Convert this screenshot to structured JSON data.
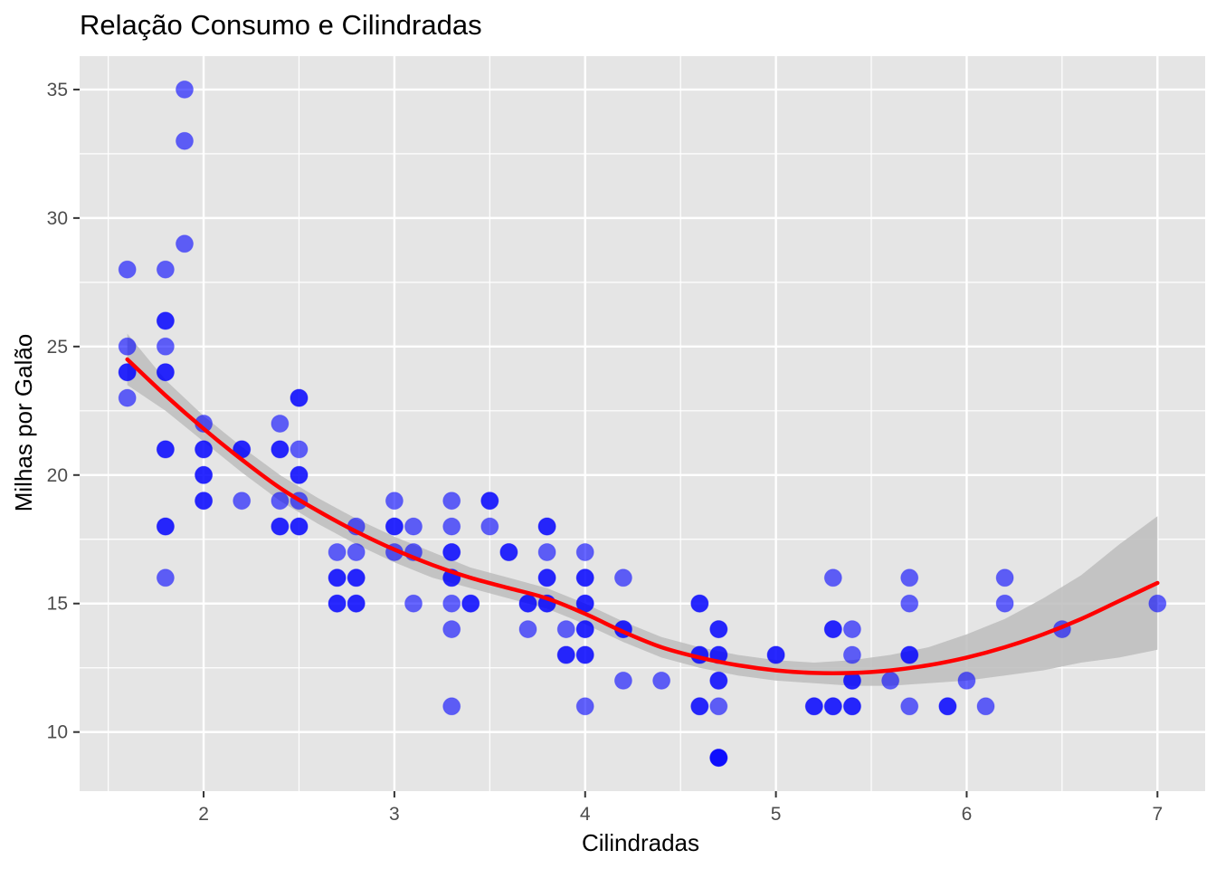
{
  "chart_data": {
    "type": "scatter",
    "title": "Relação Consumo e Cilindradas",
    "xlabel": "Cilindradas",
    "ylabel": "Milhas por Galão",
    "xlim": [
      1.35,
      7.25
    ],
    "ylim": [
      7.7,
      36.3
    ],
    "x_ticks": [
      2,
      3,
      4,
      5,
      6,
      7
    ],
    "y_ticks": [
      10,
      15,
      20,
      25,
      30,
      35
    ],
    "grid": true,
    "legend": "none",
    "colors": {
      "panel": "#e5e5e5",
      "grid": "#ffffff",
      "points": "#0000ff",
      "smooth_line": "#ff0000",
      "confidence_band": "#bdbdbd"
    },
    "points": [
      [
        1.6,
        28
      ],
      [
        1.6,
        25
      ],
      [
        1.6,
        24
      ],
      [
        1.6,
        24
      ],
      [
        1.6,
        23
      ],
      [
        1.8,
        28
      ],
      [
        1.8,
        26
      ],
      [
        1.8,
        26
      ],
      [
        1.8,
        25
      ],
      [
        1.8,
        24
      ],
      [
        1.8,
        24
      ],
      [
        1.8,
        21
      ],
      [
        1.8,
        21
      ],
      [
        1.8,
        18
      ],
      [
        1.8,
        18
      ],
      [
        1.8,
        16
      ],
      [
        1.9,
        35
      ],
      [
        1.9,
        33
      ],
      [
        1.9,
        29
      ],
      [
        2.0,
        22
      ],
      [
        2.0,
        21
      ],
      [
        2.0,
        21
      ],
      [
        2.0,
        20
      ],
      [
        2.0,
        20
      ],
      [
        2.0,
        19
      ],
      [
        2.0,
        19
      ],
      [
        2.2,
        21
      ],
      [
        2.2,
        21
      ],
      [
        2.2,
        19
      ],
      [
        2.4,
        22
      ],
      [
        2.4,
        21
      ],
      [
        2.4,
        21
      ],
      [
        2.4,
        19
      ],
      [
        2.4,
        18
      ],
      [
        2.4,
        18
      ],
      [
        2.5,
        23
      ],
      [
        2.5,
        23
      ],
      [
        2.5,
        21
      ],
      [
        2.5,
        20
      ],
      [
        2.5,
        20
      ],
      [
        2.5,
        19
      ],
      [
        2.5,
        18
      ],
      [
        2.5,
        18
      ],
      [
        2.7,
        17
      ],
      [
        2.7,
        16
      ],
      [
        2.7,
        16
      ],
      [
        2.7,
        15
      ],
      [
        2.7,
        15
      ],
      [
        2.8,
        18
      ],
      [
        2.8,
        17
      ],
      [
        2.8,
        16
      ],
      [
        2.8,
        16
      ],
      [
        2.8,
        15
      ],
      [
        2.8,
        15
      ],
      [
        3.0,
        19
      ],
      [
        3.0,
        18
      ],
      [
        3.0,
        18
      ],
      [
        3.0,
        17
      ],
      [
        3.1,
        18
      ],
      [
        3.1,
        17
      ],
      [
        3.1,
        15
      ],
      [
        3.3,
        19
      ],
      [
        3.3,
        18
      ],
      [
        3.3,
        17
      ],
      [
        3.3,
        17
      ],
      [
        3.3,
        16
      ],
      [
        3.3,
        16
      ],
      [
        3.3,
        15
      ],
      [
        3.3,
        14
      ],
      [
        3.3,
        11
      ],
      [
        3.4,
        15
      ],
      [
        3.4,
        15
      ],
      [
        3.5,
        19
      ],
      [
        3.5,
        19
      ],
      [
        3.5,
        18
      ],
      [
        3.6,
        17
      ],
      [
        3.6,
        17
      ],
      [
        3.7,
        15
      ],
      [
        3.7,
        15
      ],
      [
        3.7,
        14
      ],
      [
        3.8,
        18
      ],
      [
        3.8,
        18
      ],
      [
        3.8,
        17
      ],
      [
        3.8,
        16
      ],
      [
        3.8,
        16
      ],
      [
        3.8,
        15
      ],
      [
        3.8,
        15
      ],
      [
        3.9,
        14
      ],
      [
        3.9,
        13
      ],
      [
        3.9,
        13
      ],
      [
        4.0,
        17
      ],
      [
        4.0,
        16
      ],
      [
        4.0,
        16
      ],
      [
        4.0,
        15
      ],
      [
        4.0,
        15
      ],
      [
        4.0,
        14
      ],
      [
        4.0,
        14
      ],
      [
        4.0,
        13
      ],
      [
        4.0,
        13
      ],
      [
        4.0,
        11
      ],
      [
        4.2,
        16
      ],
      [
        4.2,
        14
      ],
      [
        4.2,
        14
      ],
      [
        4.2,
        12
      ],
      [
        4.4,
        12
      ],
      [
        4.6,
        15
      ],
      [
        4.6,
        15
      ],
      [
        4.6,
        13
      ],
      [
        4.6,
        13
      ],
      [
        4.6,
        11
      ],
      [
        4.6,
        11
      ],
      [
        4.7,
        14
      ],
      [
        4.7,
        14
      ],
      [
        4.7,
        13
      ],
      [
        4.7,
        13
      ],
      [
        4.7,
        12
      ],
      [
        4.7,
        12
      ],
      [
        4.7,
        11
      ],
      [
        4.7,
        9
      ],
      [
        4.7,
        9
      ],
      [
        4.7,
        9
      ],
      [
        5.0,
        13
      ],
      [
        5.0,
        13
      ],
      [
        5.2,
        11
      ],
      [
        5.2,
        11
      ],
      [
        5.3,
        16
      ],
      [
        5.3,
        14
      ],
      [
        5.3,
        14
      ],
      [
        5.3,
        11
      ],
      [
        5.3,
        11
      ],
      [
        5.4,
        14
      ],
      [
        5.4,
        13
      ],
      [
        5.4,
        12
      ],
      [
        5.4,
        12
      ],
      [
        5.4,
        11
      ],
      [
        5.4,
        11
      ],
      [
        5.6,
        12
      ],
      [
        5.7,
        16
      ],
      [
        5.7,
        15
      ],
      [
        5.7,
        13
      ],
      [
        5.7,
        13
      ],
      [
        5.7,
        11
      ],
      [
        5.9,
        11
      ],
      [
        5.9,
        11
      ],
      [
        6.0,
        12
      ],
      [
        6.1,
        11
      ],
      [
        6.2,
        16
      ],
      [
        6.2,
        15
      ],
      [
        6.5,
        14
      ],
      [
        7.0,
        15
      ]
    ],
    "smooth": {
      "x": [
        1.6,
        1.8,
        2.0,
        2.2,
        2.4,
        2.6,
        2.8,
        3.0,
        3.2,
        3.4,
        3.6,
        3.8,
        4.0,
        4.2,
        4.4,
        4.6,
        4.8,
        5.0,
        5.2,
        5.4,
        5.6,
        5.8,
        6.0,
        6.2,
        6.4,
        6.6,
        6.8,
        7.0
      ],
      "y": [
        24.5,
        23.1,
        21.8,
        20.6,
        19.5,
        18.6,
        17.8,
        17.1,
        16.5,
        16.0,
        15.6,
        15.2,
        14.6,
        13.9,
        13.3,
        12.9,
        12.6,
        12.4,
        12.3,
        12.3,
        12.4,
        12.6,
        12.9,
        13.3,
        13.8,
        14.4,
        15.1,
        15.8
      ],
      "lower": [
        23.5,
        22.5,
        21.3,
        20.1,
        19.0,
        18.1,
        17.3,
        16.6,
        16.0,
        15.6,
        15.2,
        14.8,
        14.2,
        13.5,
        12.9,
        12.5,
        12.2,
        12.0,
        11.9,
        11.8,
        11.8,
        11.9,
        12.0,
        12.2,
        12.4,
        12.7,
        12.9,
        13.2
      ],
      "upper": [
        25.5,
        23.7,
        22.3,
        21.1,
        20.0,
        19.1,
        18.3,
        17.6,
        17.0,
        16.4,
        16.0,
        15.6,
        15.0,
        14.3,
        13.7,
        13.3,
        13.0,
        12.8,
        12.7,
        12.8,
        13.0,
        13.3,
        13.8,
        14.4,
        15.2,
        16.1,
        17.3,
        18.4
      ]
    }
  }
}
